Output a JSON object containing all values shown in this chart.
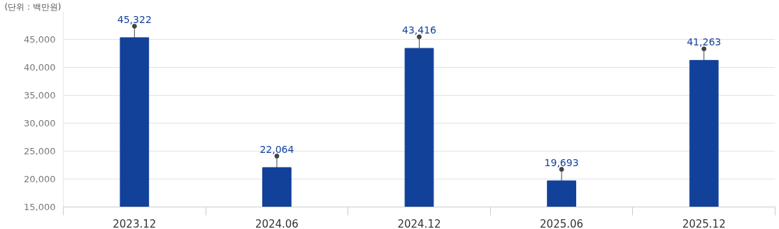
{
  "chart_data": {
    "type": "bar",
    "annotations": [
      "(단위 : 백만원)"
    ],
    "categories": [
      "2023.12",
      "2024.06",
      "2024.12",
      "2025.06",
      "2025.12"
    ],
    "values": [
      45322,
      22064,
      43416,
      19693,
      41263
    ],
    "color": "#12419a",
    "ylim": [
      15000,
      50000
    ],
    "yticks": [
      {
        "value": 15000,
        "label": "15,000"
      },
      {
        "value": 20000,
        "label": "20,000"
      },
      {
        "value": 25000,
        "label": "25,000"
      },
      {
        "value": 30000,
        "label": "30,000"
      },
      {
        "value": 35000,
        "label": "35,000"
      },
      {
        "value": 40000,
        "label": "40,000"
      },
      {
        "value": 45000,
        "label": "45,000"
      }
    ],
    "value_labels": [
      "45,322",
      "22,064",
      "43,416",
      "19,693",
      "41,263"
    ],
    "grid": "y"
  }
}
